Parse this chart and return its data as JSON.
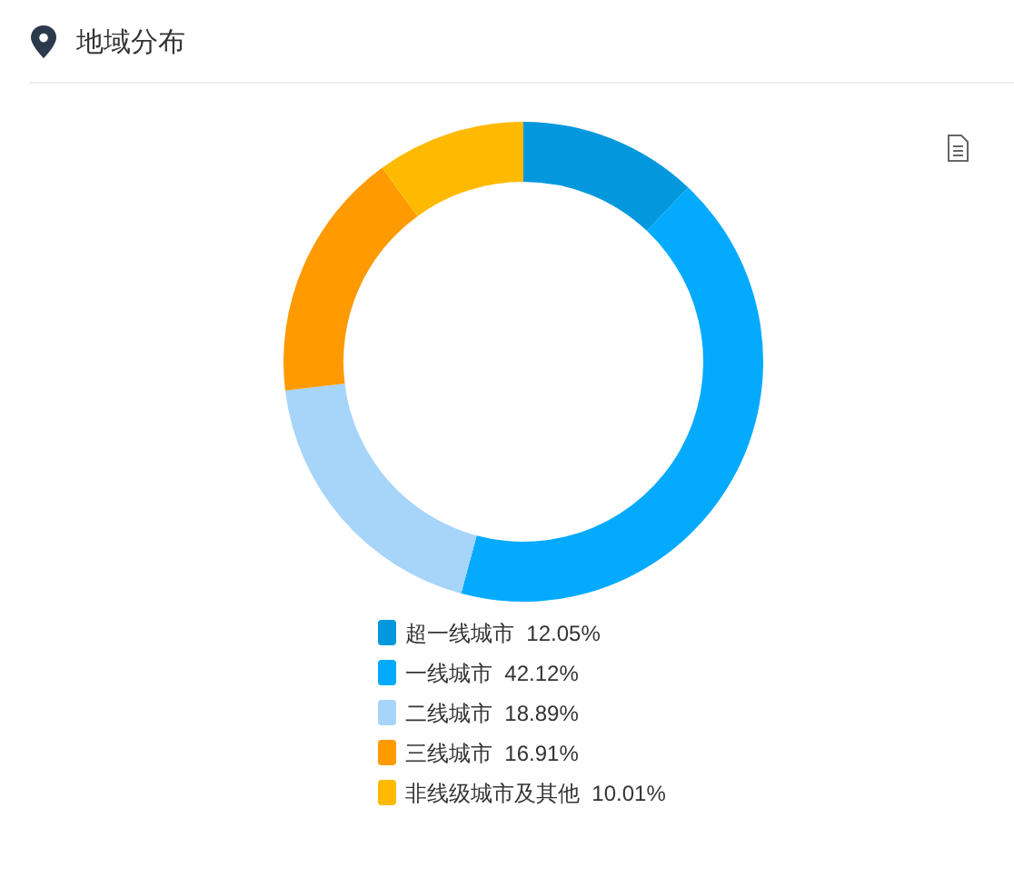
{
  "chart_data": {
    "type": "donut",
    "title": "地域分布",
    "categories": [
      "超一线城市",
      "一线城市",
      "二线城市",
      "三线城市",
      "非线级城市及其他"
    ],
    "values": [
      12.05,
      42.12,
      18.89,
      16.91,
      10.01
    ],
    "value_labels": [
      "12.05%",
      "42.12%",
      "18.89%",
      "16.91%",
      "10.01%"
    ],
    "colors": [
      "#0398dd",
      "#03aafe",
      "#a7d4f9",
      "#ff9a00",
      "#ffba00"
    ],
    "legend": "bottom"
  }
}
